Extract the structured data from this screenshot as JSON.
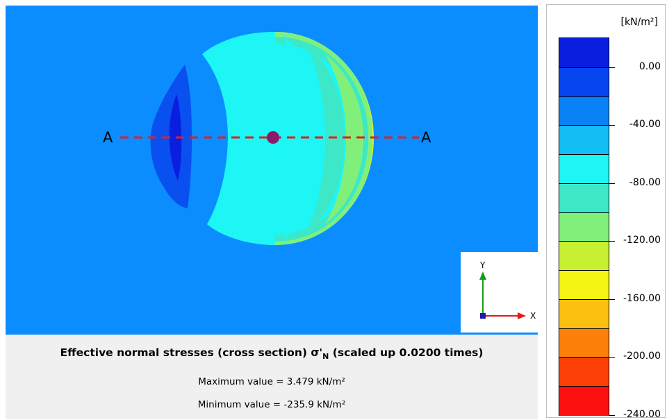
{
  "plot": {
    "background_color": "#0b8dff",
    "section_line_color": "#e02020",
    "section_label_left": "A",
    "section_label_right": "A",
    "center_marker_color": "#8a1a6a"
  },
  "axes_indicator": {
    "y_label": "Y",
    "x_label": "X",
    "y_color": "#1a9a1a",
    "x_color": "#e01a1a",
    "z_color": "#1a1ab0"
  },
  "caption": {
    "title_prefix": "Effective normal stresses (cross section) σ'",
    "title_subscript": "N",
    "title_suffix": " (scaled up 0.0200 times)",
    "max_value": "Maximum value = 3.479 kN/m²",
    "min_value": "Minimum value = -235.9 kN/m²"
  },
  "legend": {
    "unit": "[kN/m²]",
    "labels": [
      "0.00",
      "-40.00",
      "-80.00",
      "-120.00",
      "-160.00",
      "-200.00",
      "-240.00"
    ],
    "colors": [
      "#0a1ee0",
      "#0645f0",
      "#0a82f5",
      "#12bdf5",
      "#1ef5f5",
      "#3de8c8",
      "#80f07a",
      "#c8f032",
      "#f5f514",
      "#fcc010",
      "#fc800a",
      "#fc4006",
      "#fc1010"
    ]
  }
}
